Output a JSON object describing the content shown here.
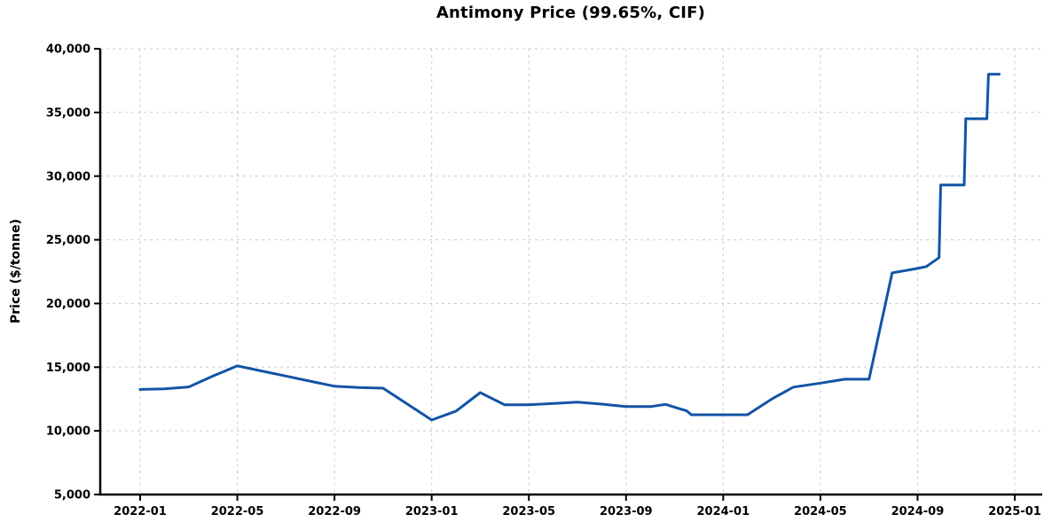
{
  "title": "Antimony Price (99.65%, CIF)",
  "chart_data": {
    "type": "line",
    "title": "Antimony Price (99.65%, CIF)",
    "xlabel": "",
    "ylabel": "Price ($/tonne)",
    "ylim": [
      5000,
      40000
    ],
    "grid": true,
    "legend": "none",
    "background_color": "#ffffff",
    "grid_color": "#cccccc",
    "axis_color": "#000000",
    "line_color": "#1254a6",
    "line_width": 3,
    "yticks": [
      {
        "value": 5000,
        "label": "5,000"
      },
      {
        "value": 10000,
        "label": "10,000"
      },
      {
        "value": 15000,
        "label": "15,000"
      },
      {
        "value": 20000,
        "label": "20,000"
      },
      {
        "value": 25000,
        "label": "25,000"
      },
      {
        "value": 30000,
        "label": "30,000"
      },
      {
        "value": 35000,
        "label": "35,000"
      },
      {
        "value": 40000,
        "label": "40,000"
      }
    ],
    "xticks": [
      {
        "month": "2022-01",
        "label": "2022-01"
      },
      {
        "month": "2022-05",
        "label": "2022-05"
      },
      {
        "month": "2022-09",
        "label": "2022-09"
      },
      {
        "month": "2023-01",
        "label": "2023-01"
      },
      {
        "month": "2023-05",
        "label": "2023-05"
      },
      {
        "month": "2023-09",
        "label": "2023-09"
      },
      {
        "month": "2024-01",
        "label": "2024-01"
      },
      {
        "month": "2024-05",
        "label": "2024-05"
      },
      {
        "month": "2024-09",
        "label": "2024-09"
      },
      {
        "month": "2025-01",
        "label": "2025-01"
      }
    ],
    "series": [
      {
        "name": "Antimony Price ($/tonne)",
        "points": [
          [
            "2022-01-01",
            13250
          ],
          [
            "2022-02-01",
            13300
          ],
          [
            "2022-03-01",
            13450
          ],
          [
            "2022-04-01",
            14300
          ],
          [
            "2022-05-01",
            15100
          ],
          [
            "2022-06-01",
            14700
          ],
          [
            "2022-07-01",
            14300
          ],
          [
            "2022-08-01",
            13900
          ],
          [
            "2022-09-01",
            13500
          ],
          [
            "2022-10-01",
            13400
          ],
          [
            "2022-11-01",
            13350
          ],
          [
            "2022-12-01",
            12100
          ],
          [
            "2023-01-01",
            10850
          ],
          [
            "2023-02-01",
            11550
          ],
          [
            "2023-03-01",
            13000
          ],
          [
            "2023-04-01",
            12050
          ],
          [
            "2023-05-01",
            12050
          ],
          [
            "2023-06-01",
            12150
          ],
          [
            "2023-07-01",
            12250
          ],
          [
            "2023-08-01",
            12100
          ],
          [
            "2023-09-01",
            11900
          ],
          [
            "2023-10-01",
            11900
          ],
          [
            "2023-10-20",
            12080
          ],
          [
            "2023-11-16",
            11570
          ],
          [
            "2023-11-22",
            11260
          ],
          [
            "2024-01-01",
            11260
          ],
          [
            "2024-02-01",
            11260
          ],
          [
            "2024-03-01",
            12500
          ],
          [
            "2024-03-28",
            13430
          ],
          [
            "2024-05-01",
            13750
          ],
          [
            "2024-06-01",
            14050
          ],
          [
            "2024-07-01",
            14050
          ],
          [
            "2024-07-30",
            22400
          ],
          [
            "2024-09-01",
            22750
          ],
          [
            "2024-09-12",
            22900
          ],
          [
            "2024-09-28",
            23600
          ],
          [
            "2024-09-30",
            29300
          ],
          [
            "2024-10-29",
            29300
          ],
          [
            "2024-10-31",
            34500
          ],
          [
            "2024-11-27",
            34500
          ],
          [
            "2024-11-29",
            38000
          ],
          [
            "2024-12-12",
            38000
          ]
        ]
      }
    ]
  }
}
